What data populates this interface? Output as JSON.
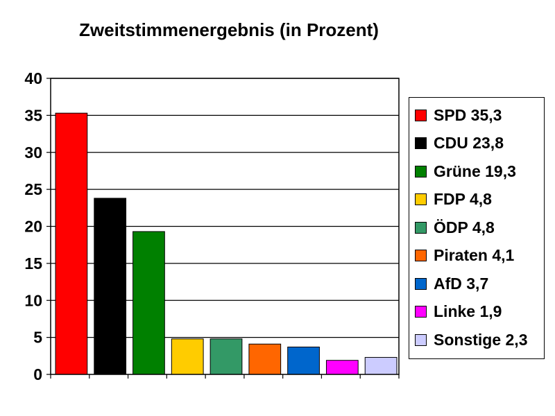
{
  "chart_data": {
    "type": "bar",
    "title": "Zweitstimmenergebnis (in Prozent)",
    "xlabel": "",
    "ylabel": "",
    "ylim": [
      0,
      40
    ],
    "yticks": [
      "0",
      "5",
      "10",
      "15",
      "20",
      "25",
      "30",
      "35",
      "40"
    ],
    "grid": true,
    "legend_position": "right",
    "categories": [
      "SPD",
      "CDU",
      "Grüne",
      "FDP",
      "ÖDP",
      "Piraten",
      "AfD",
      "Linke",
      "Sonstige"
    ],
    "values": [
      35.3,
      23.8,
      19.3,
      4.8,
      4.8,
      4.1,
      3.7,
      1.9,
      2.3
    ],
    "colors": [
      "#ff0000",
      "#000000",
      "#008000",
      "#ffcc00",
      "#339966",
      "#ff6600",
      "#0066cc",
      "#ff00ff",
      "#ccccff"
    ],
    "legend": [
      "SPD 35,3",
      "CDU 23,8",
      "Grüne 19,3",
      "FDP 4,8",
      "ÖDP 4,8",
      "Piraten 4,1",
      "AfD 3,7",
      "Linke 1,9",
      "Sonstige 2,3"
    ]
  }
}
